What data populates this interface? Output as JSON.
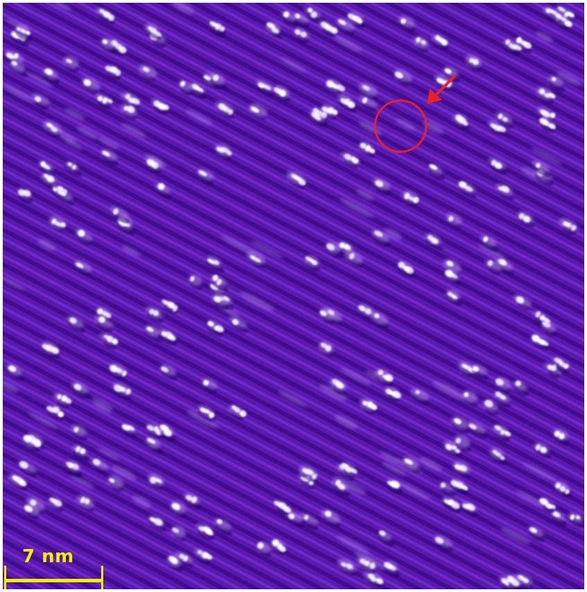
{
  "image": {
    "description_colors": {
      "background": "#5a18b0",
      "dark_stripe": "#3d0b86",
      "light_stripe": "#7a3ad0",
      "feature": "#ffffff",
      "annotation": "#e8202a",
      "scalebar": "#f2f000"
    }
  },
  "scalebar": {
    "label": "7 nm"
  }
}
